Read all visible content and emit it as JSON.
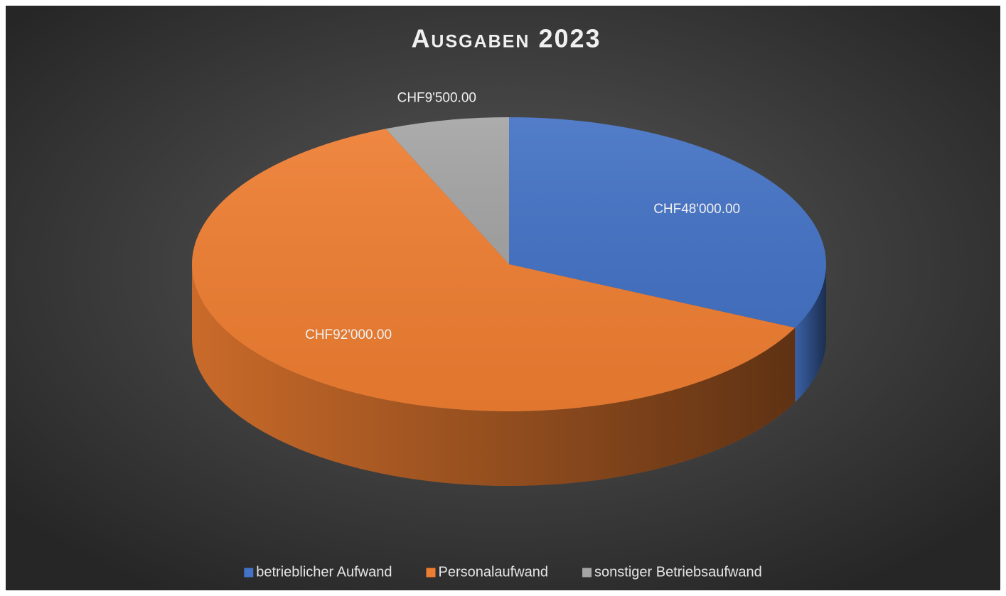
{
  "chart_data": {
    "type": "pie",
    "title": "Ausgaben 2023",
    "categories": [
      "betrieblicher Aufwand",
      "Personalaufwand",
      "sonstiger Betriebsaufwand"
    ],
    "values": [
      48000,
      92000,
      9500
    ],
    "value_labels": [
      "CHF48'000.00",
      "CHF92'000.00",
      "CHF9'500.00"
    ],
    "colors": [
      "#4472c4",
      "#ed7d31",
      "#a5a5a5"
    ],
    "legend": "bottom"
  }
}
